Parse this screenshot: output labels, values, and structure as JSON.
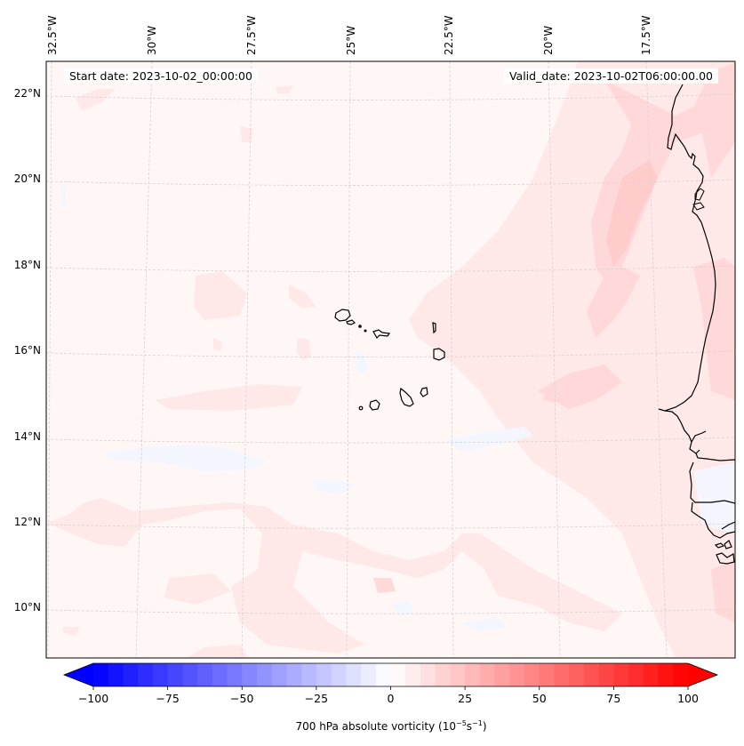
{
  "map": {
    "type": "filled-contour-map",
    "variable_label": "700 hPa absolute vorticity (10",
    "units_exp1": "−5",
    "units_mid": "s",
    "units_exp2": "−1",
    "units_close": ")",
    "start_date": "Start date: 2023-10-02_00:00:00",
    "valid_date": "Valid_date: 2023-10-02T06:00:00.00",
    "longitude_labels": [
      "32.5°W",
      "30°W",
      "27.5°W",
      "25°W",
      "22.5°W",
      "20°W",
      "17.5°W"
    ],
    "latitude_labels": [
      "22°N",
      "20°N",
      "18°N",
      "16°N",
      "14°N",
      "12°N",
      "10°N"
    ],
    "gridlines": "on, dashed light gray",
    "coastline_color": "#000000",
    "background_field_color": "#fff6f6"
  },
  "chart_data": {
    "type": "heatmap",
    "title": "",
    "colorbar": {
      "label": "700 hPa absolute vorticity (10^-5 s^-1)",
      "range": [
        -100,
        100
      ],
      "step": 5,
      "extend": "both",
      "colormap": "bwr",
      "low_color": "#0000ff",
      "mid_color": "#ffffff",
      "high_color": "#ff0000",
      "ticks": [
        -100,
        -75,
        -50,
        -25,
        0,
        25,
        50,
        75,
        100
      ],
      "tick_labels": [
        "−100",
        "−75",
        "−50",
        "−25",
        "0",
        "25",
        "50",
        "75",
        "100"
      ]
    },
    "field_summary": {
      "dominant_range": [
        0,
        5
      ],
      "max_observed_range": [
        15,
        20
      ],
      "max_region": "offshore band along West African coast near 17–21°N",
      "minor_negative_patches": [
        -5,
        0
      ]
    },
    "xlim_deg_lon": [
      -33,
      -15.5
    ],
    "ylim_deg_lat": [
      9,
      22.8
    ]
  }
}
